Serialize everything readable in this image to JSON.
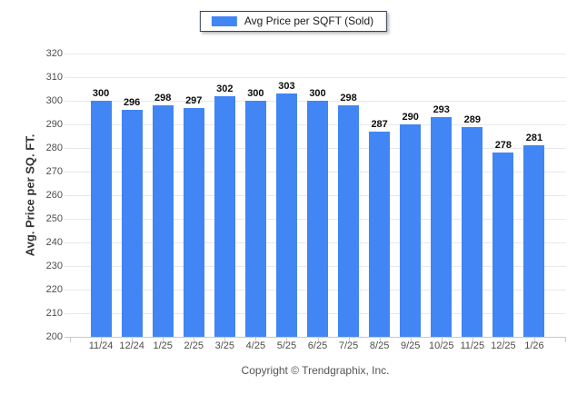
{
  "legend": {
    "label": "Avg Price per SQFT (Sold)"
  },
  "footer": {
    "text": "Copyright © Trendgraphix, Inc."
  },
  "chart_data": {
    "type": "bar",
    "title": "",
    "legend": "Avg Price per SQFT (Sold)",
    "legend_position": "top-center",
    "xlabel": "",
    "ylabel": "Avg. Price per SQ. FT.",
    "categories": [
      "11/24",
      "12/24",
      "1/25",
      "2/25",
      "3/25",
      "4/25",
      "5/25",
      "6/25",
      "7/25",
      "8/25",
      "9/25",
      "10/25",
      "11/25",
      "12/25",
      "1/26"
    ],
    "values": [
      300,
      296,
      298,
      297,
      302,
      300,
      303,
      300,
      298,
      287,
      290,
      293,
      289,
      278,
      281
    ],
    "ylim": [
      200,
      320
    ],
    "ytick_step": 10,
    "grid": "horizontal",
    "data_labels": true
  },
  "colors": {
    "bar": "#4285F4",
    "grid_line": "#e9e9e9",
    "axis_line": "#c9c9c9",
    "tick_label": "#4d4d4d",
    "value_label": "#0d0d0d",
    "legend_border": "#33425B",
    "footer_text": "#555555"
  }
}
